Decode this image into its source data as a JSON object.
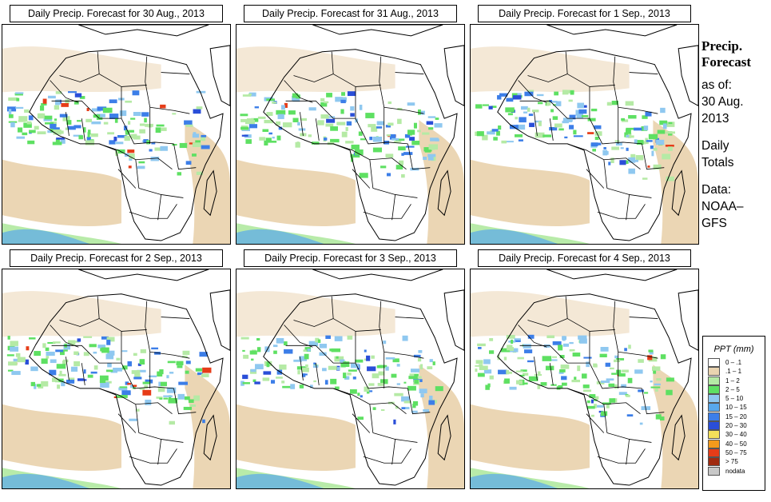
{
  "panels": [
    {
      "title": "Daily Precip. Forecast for  30 Aug., 2013"
    },
    {
      "title": "Daily Precip. Forecast for  31 Aug., 2013"
    },
    {
      "title": "Daily Precip. Forecast for  1 Sep., 2013"
    },
    {
      "title": "Daily Precip. Forecast for  2 Sep., 2013"
    },
    {
      "title": "Daily Precip. Forecast for  3 Sep., 2013"
    },
    {
      "title": "Daily Precip. Forecast for  4 Sep., 2013"
    }
  ],
  "side": {
    "heading_1": "Precip.",
    "heading_2": "Forecast",
    "asof_1": "as of:",
    "asof_2": "30 Aug.",
    "asof_3": "2013",
    "daily_1": "Daily",
    "daily_2": "Totals",
    "data_1": "Data:",
    "data_2": "NOAA–",
    "data_3": "GFS"
  },
  "legend": {
    "title": "PPT (mm)",
    "items": [
      {
        "label": "0 – .1",
        "color": "#ffffff"
      },
      {
        "label": ".1 – 1",
        "color": "#ead4b0"
      },
      {
        "label": "1 – 2",
        "color": "#b5eaa5"
      },
      {
        "label": "2 – 5",
        "color": "#5ee062"
      },
      {
        "label": "5 – 10",
        "color": "#8fc8f0"
      },
      {
        "label": "10 – 15",
        "color": "#58a8ec"
      },
      {
        "label": "15 – 20",
        "color": "#3c7ee8"
      },
      {
        "label": "20 – 30",
        "color": "#2a4ed8"
      },
      {
        "label": "30 – 40",
        "color": "#f4e05a"
      },
      {
        "label": "40 – 50",
        "color": "#f49a1c"
      },
      {
        "label": "50 – 75",
        "color": "#e63c18"
      },
      {
        "label": "> 75",
        "color": "#a02a10"
      },
      {
        "label": "nodata",
        "color": "#c8c8c8"
      }
    ]
  }
}
